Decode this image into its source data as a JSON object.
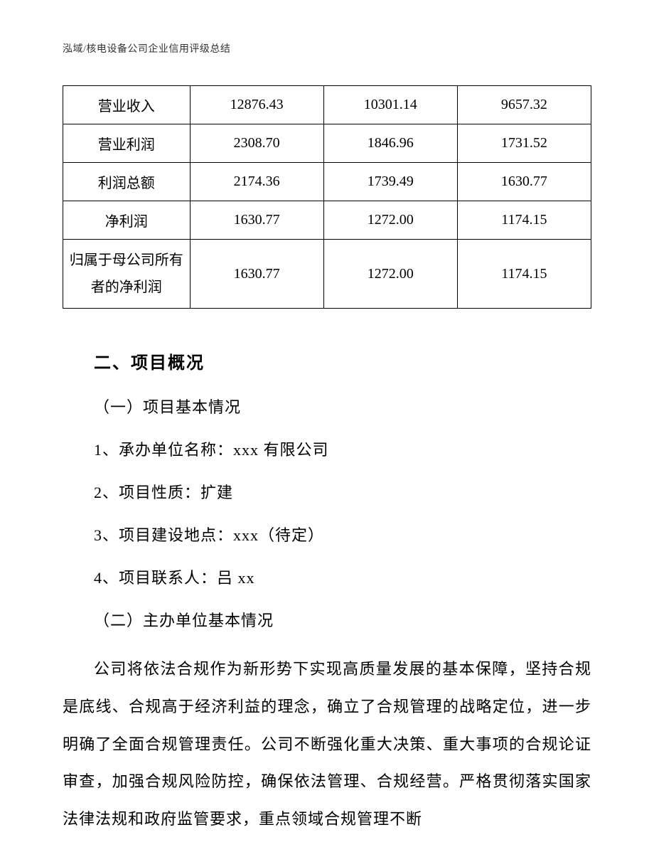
{
  "header": {
    "text": "泓域/核电设备公司企业信用评级总结"
  },
  "table": {
    "rows": [
      {
        "label": "营业收入",
        "c1": "12876.43",
        "c2": "10301.14",
        "c3": "9657.32"
      },
      {
        "label": "营业利润",
        "c1": "2308.70",
        "c2": "1846.96",
        "c3": "1731.52"
      },
      {
        "label": "利润总额",
        "c1": "2174.36",
        "c2": "1739.49",
        "c3": "1630.77"
      },
      {
        "label": "净利润",
        "c1": "1630.77",
        "c2": "1272.00",
        "c3": "1174.15"
      },
      {
        "label_line1": "归属于母公司所有",
        "label_line2": "者的净利润",
        "c1": "1630.77",
        "c2": "1272.00",
        "c3": "1174.15"
      }
    ]
  },
  "content": {
    "section_heading": "二、项目概况",
    "sub_heading_1": "（一）项目基本情况",
    "item_1": "1、承办单位名称：xxx 有限公司",
    "item_2": "2、项目性质：扩建",
    "item_3": "3、项目建设地点：xxx（待定）",
    "item_4": "4、项目联系人：吕 xx",
    "sub_heading_2": "（二）主办单位基本情况",
    "paragraph": "公司将依法合规作为新形势下实现高质量发展的基本保障，坚持合规是底线、合规高于经济利益的理念，确立了合规管理的战略定位，进一步明确了全面合规管理责任。公司不断强化重大决策、重大事项的合规论证审查，加强合规风险防控，确保依法管理、合规经营。严格贯彻落实国家法律法规和政府监管要求，重点领域合规管理不断"
  }
}
